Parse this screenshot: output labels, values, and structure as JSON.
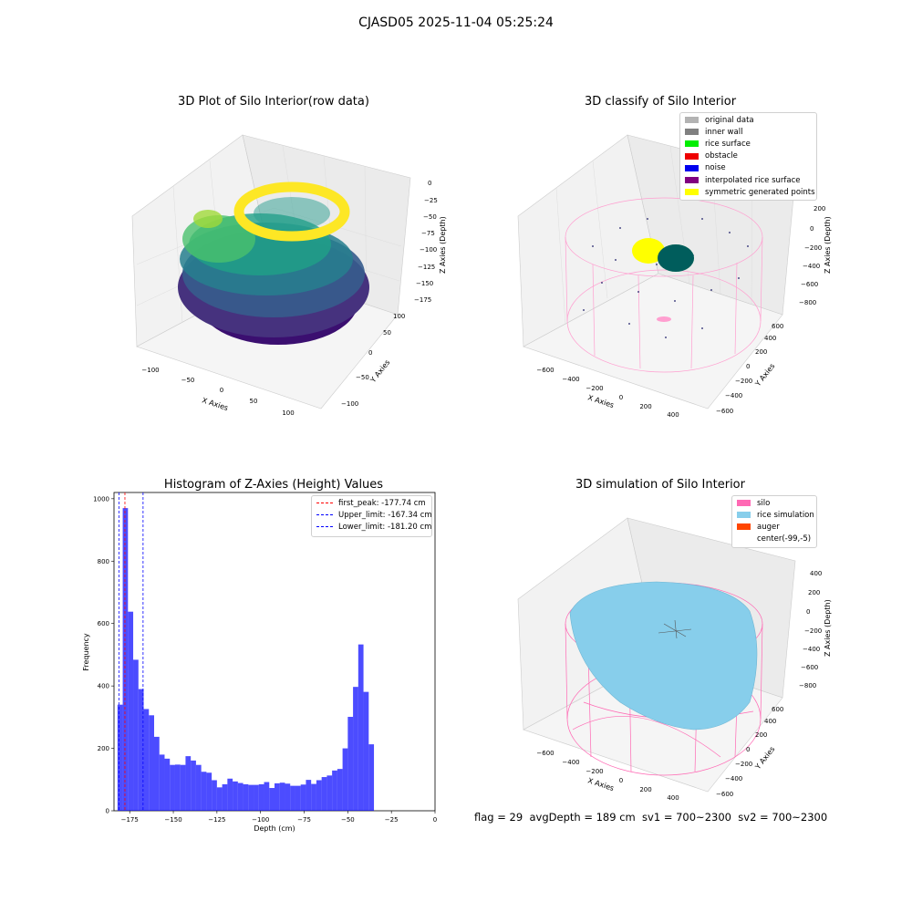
{
  "figure": {
    "suptitle": "CJASD05 2025-11-04 05:25:24",
    "footer": "flag = 29  avgDepth = 189 cm  sv1 = 700~2300  sv2 = 700~2300"
  },
  "panels": {
    "raw": {
      "title": "3D Plot of Silo Interior(row data)",
      "xlabel": "X Axies",
      "ylabel": "Y Axies",
      "zlabel": "Z Axies (Depth)",
      "xticks": [
        "−100",
        "−50",
        "0",
        "50",
        "100"
      ],
      "yticks": [
        "−100",
        "−50",
        "0",
        "50",
        "100"
      ],
      "zticks": [
        "0",
        "−25",
        "−50",
        "−75",
        "−100",
        "−125",
        "−150",
        "−175"
      ]
    },
    "classify": {
      "title": "3D classify of Silo Interior",
      "xlabel": "X Axies",
      "ylabel": "Y Axies",
      "zlabel": "Z Axies (Depth)",
      "xticks": [
        "−600",
        "−400",
        "−200",
        "0",
        "200",
        "400"
      ],
      "yticks": [
        "−600",
        "−400",
        "−200",
        "0",
        "200",
        "400",
        "600"
      ],
      "zticks": [
        "200",
        "0",
        "−200",
        "−400",
        "−600",
        "−800"
      ],
      "legend": [
        {
          "label": "original data",
          "color": "#b3b3b3"
        },
        {
          "label": "inner wall",
          "color": "#808080"
        },
        {
          "label": "rice surface",
          "color": "#00ee00"
        },
        {
          "label": "obstacle",
          "color": "#ee0000"
        },
        {
          "label": "noise",
          "color": "#0000ee"
        },
        {
          "label": "interpolated rice surface",
          "color": "#800080"
        },
        {
          "label": "symmetric generated points",
          "color": "#ffff00"
        }
      ]
    },
    "simulation": {
      "title": "3D simulation of Silo Interior",
      "xlabel": "X Axies",
      "ylabel": "Y Axies",
      "zlabel": "Z Axies (Depth)",
      "xticks": [
        "−600",
        "−400",
        "−200",
        "0",
        "200",
        "400"
      ],
      "yticks": [
        "−600",
        "−400",
        "−200",
        "0",
        "200",
        "400",
        "600"
      ],
      "zticks": [
        "400",
        "200",
        "0",
        "−200",
        "−400",
        "−600",
        "−800"
      ],
      "legend": [
        {
          "label": "silo",
          "color": "#ff69b4"
        },
        {
          "label": "rice simulation",
          "color": "#87ceeb"
        },
        {
          "label": "auger",
          "color": "#ff4500"
        },
        {
          "label": "center(-99,-5)",
          "color": ""
        }
      ]
    }
  },
  "chart_data": {
    "type": "bar",
    "title": "Histogram of Z-Axies (Height) Values",
    "xlabel": "Depth (cm)",
    "ylabel": "Frequency",
    "xlim": [
      -184,
      0
    ],
    "ylim": [
      0,
      1020
    ],
    "xticks": [
      -175,
      -150,
      -125,
      -100,
      -75,
      -50,
      -25,
      0
    ],
    "yticks": [
      0,
      200,
      400,
      600,
      800,
      1000
    ],
    "bar_color": "#0000ff",
    "bin_start": -182,
    "bin_width": 3.0,
    "values": [
      340,
      970,
      638,
      484,
      390,
      326,
      306,
      237,
      180,
      167,
      147,
      148,
      147,
      175,
      161,
      147,
      125,
      122,
      98,
      75,
      85,
      103,
      94,
      89,
      85,
      83,
      83,
      85,
      92,
      73,
      88,
      90,
      87,
      80,
      80,
      84,
      99,
      86,
      98,
      108,
      113,
      129,
      134,
      200,
      301,
      397,
      533,
      381,
      213
    ],
    "reference_lines": [
      {
        "label": "first_peak: -177.74 cm",
        "value": -177.74,
        "color": "#ff0000"
      },
      {
        "label": "Upper_limit: -167.34 cm",
        "value": -167.34,
        "color": "#0000ff"
      },
      {
        "label": "Lower_limit: -181.20 cm",
        "value": -181.2,
        "color": "#0000ff"
      }
    ]
  }
}
